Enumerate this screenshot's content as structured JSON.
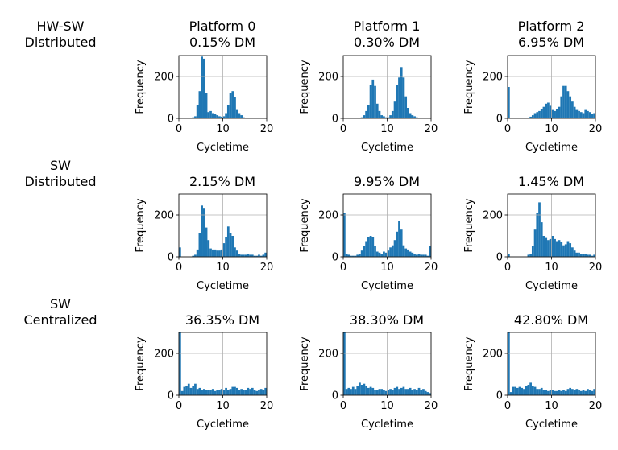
{
  "row_labels": [
    {
      "line1": "HW-SW",
      "line2": "Distributed"
    },
    {
      "line1": "SW",
      "line2": "Distributed"
    },
    {
      "line1": "SW",
      "line2": "Centralized"
    }
  ],
  "chart_data": [
    {
      "type": "bar",
      "title_line1": "Platform 0",
      "title": "0.15% DM",
      "xlabel": "Cycletime",
      "ylabel": "Frequency",
      "xlim": [
        0,
        20
      ],
      "ylim": [
        0,
        300
      ],
      "xticks": [
        0,
        10,
        20
      ],
      "yticks": [
        0,
        200
      ],
      "grid": true,
      "bin_width": 0.5,
      "values": [
        0,
        0,
        0,
        0,
        0,
        0,
        5,
        10,
        65,
        130,
        295,
        285,
        120,
        30,
        35,
        25,
        20,
        15,
        10,
        8,
        10,
        25,
        65,
        120,
        130,
        100,
        40,
        25,
        15,
        5,
        0,
        0,
        0,
        0,
        0,
        0,
        0,
        0,
        0,
        0
      ]
    },
    {
      "type": "bar",
      "title_line1": "Platform 1",
      "title": "0.30% DM",
      "xlabel": "Cycletime",
      "ylabel": "Frequency",
      "xlim": [
        0,
        20
      ],
      "ylim": [
        0,
        300
      ],
      "xticks": [
        0,
        10,
        20
      ],
      "yticks": [
        0,
        200
      ],
      "grid": true,
      "bin_width": 0.5,
      "values": [
        0,
        0,
        0,
        0,
        0,
        0,
        0,
        0,
        5,
        15,
        35,
        65,
        160,
        185,
        155,
        70,
        35,
        15,
        10,
        5,
        5,
        15,
        35,
        80,
        160,
        195,
        245,
        195,
        105,
        50,
        25,
        15,
        10,
        5,
        0,
        0,
        0,
        0,
        0,
        0
      ]
    },
    {
      "type": "bar",
      "title_line1": "Platform 2",
      "title": "6.95% DM",
      "xlabel": "Cycletime",
      "ylabel": "Frequency",
      "xlim": [
        0,
        20
      ],
      "ylim": [
        0,
        300
      ],
      "xticks": [
        0,
        10,
        20
      ],
      "yticks": [
        0,
        200
      ],
      "grid": true,
      "bin_width": 0.5,
      "values": [
        150,
        0,
        0,
        0,
        0,
        0,
        0,
        0,
        0,
        3,
        8,
        15,
        25,
        30,
        35,
        45,
        55,
        70,
        75,
        60,
        40,
        35,
        45,
        55,
        105,
        155,
        155,
        130,
        105,
        80,
        55,
        40,
        35,
        30,
        25,
        40,
        35,
        30,
        20,
        25
      ]
    },
    {
      "type": "bar",
      "title": "2.15% DM",
      "xlabel": "Cycletime",
      "ylabel": "Frequency",
      "xlim": [
        0,
        20
      ],
      "ylim": [
        0,
        300
      ],
      "xticks": [
        0,
        10,
        20
      ],
      "yticks": [
        0,
        200
      ],
      "grid": true,
      "bin_width": 0.5,
      "values": [
        45,
        0,
        0,
        0,
        0,
        0,
        5,
        10,
        35,
        115,
        245,
        230,
        140,
        80,
        40,
        35,
        35,
        30,
        30,
        35,
        65,
        95,
        145,
        115,
        100,
        45,
        30,
        15,
        10,
        10,
        10,
        15,
        10,
        10,
        5,
        5,
        10,
        5,
        10,
        20
      ]
    },
    {
      "type": "bar",
      "title": "9.95% DM",
      "xlabel": "Cycletime",
      "ylabel": "Frequency",
      "xlim": [
        0,
        20
      ],
      "ylim": [
        0,
        300
      ],
      "xticks": [
        0,
        10,
        20
      ],
      "yticks": [
        0,
        200
      ],
      "grid": true,
      "bin_width": 0.5,
      "values": [
        210,
        15,
        10,
        5,
        5,
        5,
        10,
        15,
        30,
        50,
        75,
        95,
        100,
        95,
        50,
        25,
        20,
        15,
        25,
        20,
        30,
        45,
        55,
        80,
        120,
        170,
        130,
        55,
        40,
        35,
        25,
        20,
        15,
        10,
        15,
        10,
        10,
        10,
        5,
        50
      ]
    },
    {
      "type": "bar",
      "title": "1.45% DM",
      "xlabel": "Cycletime",
      "ylabel": "Frequency",
      "xlim": [
        0,
        20
      ],
      "ylim": [
        0,
        300
      ],
      "xticks": [
        0,
        10,
        20
      ],
      "yticks": [
        0,
        200
      ],
      "grid": true,
      "bin_width": 0.5,
      "values": [
        15,
        0,
        0,
        0,
        0,
        0,
        0,
        0,
        0,
        10,
        15,
        50,
        130,
        210,
        260,
        165,
        100,
        90,
        80,
        85,
        100,
        85,
        75,
        80,
        70,
        55,
        60,
        75,
        65,
        45,
        30,
        20,
        20,
        15,
        15,
        15,
        10,
        10,
        5,
        10
      ]
    },
    {
      "type": "bar",
      "title": "36.35% DM",
      "xlabel": "Cycletime",
      "ylabel": "Frequency",
      "xlim": [
        0,
        20
      ],
      "ylim": [
        0,
        300
      ],
      "xticks": [
        0,
        10,
        20
      ],
      "yticks": [
        0,
        200
      ],
      "grid": true,
      "bin_width": 0.5,
      "values": [
        300,
        20,
        40,
        45,
        55,
        35,
        45,
        55,
        30,
        35,
        25,
        30,
        25,
        25,
        25,
        30,
        20,
        25,
        25,
        30,
        25,
        35,
        25,
        30,
        40,
        40,
        35,
        25,
        30,
        25,
        25,
        35,
        30,
        35,
        25,
        20,
        25,
        30,
        25,
        35
      ]
    },
    {
      "type": "bar",
      "title": "38.30% DM",
      "xlabel": "Cycletime",
      "ylabel": "Frequency",
      "xlim": [
        0,
        20
      ],
      "ylim": [
        0,
        300
      ],
      "xticks": [
        0,
        10,
        20
      ],
      "yticks": [
        0,
        200
      ],
      "grid": true,
      "bin_width": 0.5,
      "values": [
        300,
        30,
        35,
        30,
        40,
        30,
        45,
        60,
        50,
        55,
        45,
        35,
        40,
        35,
        25,
        25,
        30,
        30,
        25,
        20,
        25,
        30,
        25,
        35,
        40,
        30,
        35,
        40,
        30,
        30,
        35,
        25,
        30,
        25,
        35,
        25,
        30,
        20,
        15,
        10
      ]
    },
    {
      "type": "bar",
      "title": "42.80% DM",
      "xlabel": "Cycletime",
      "ylabel": "Frequency",
      "xlim": [
        0,
        20
      ],
      "ylim": [
        0,
        300
      ],
      "xticks": [
        0,
        10,
        20
      ],
      "yticks": [
        0,
        200
      ],
      "grid": true,
      "bin_width": 0.5,
      "values": [
        300,
        15,
        40,
        40,
        35,
        40,
        35,
        30,
        45,
        50,
        60,
        45,
        40,
        30,
        30,
        35,
        25,
        25,
        20,
        25,
        25,
        20,
        20,
        25,
        20,
        25,
        20,
        30,
        35,
        30,
        25,
        30,
        25,
        20,
        25,
        20,
        30,
        25,
        20,
        30
      ]
    }
  ]
}
